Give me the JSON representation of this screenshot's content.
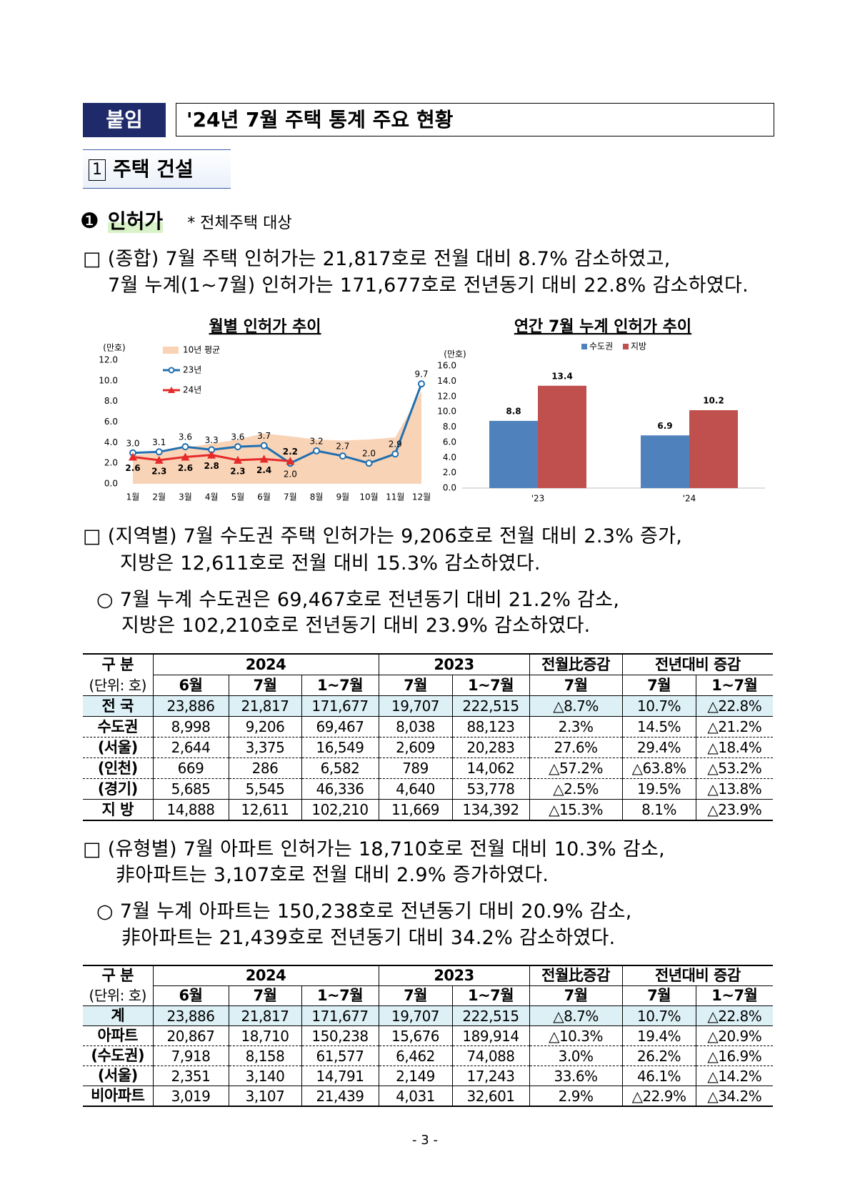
{
  "header": {
    "tag": "붙임",
    "title": "'24년 7월 주택 통계 주요 현황"
  },
  "section": {
    "number": "1",
    "title": "주택 건설"
  },
  "subsection": {
    "bullet": "❶",
    "title": "인허가",
    "note": "* 전체주택 대상"
  },
  "paragraphs": [
    {
      "lines": [
        "□ (종합) 7월 주택 인허가는 21,817호로 전월 대비 8.7% 감소하였고,",
        "7월 누계(1~7월) 인허가는 171,677호로 전년동기 대비 22.8% 감소하였다."
      ]
    },
    {
      "lines": [
        "□ (지역별) 7월 수도권 주택 인허가는 9,206호로 전월 대비 2.3% 증가,",
        "지방은 12,611호로 전월 대비 15.3% 감소하였다."
      ]
    },
    {
      "lines": [
        "○ 7월 누계 수도권은 69,467호로 전년동기 대비 21.2% 감소,",
        "지방은 102,210호로 전년동기 대비 23.9% 감소하였다."
      ]
    },
    {
      "lines": [
        "□ (유형별) 7월 아파트 인허가는 18,710호로 전월 대비 10.3% 감소,",
        "非아파트는 3,107호로 전월 대비 2.9% 증가하였다."
      ]
    },
    {
      "lines": [
        "○ 7월 누계 아파트는 150,238호로 전년동기 대비 20.9% 감소,",
        "非아파트는 21,439호로 전년동기 대비 34.2% 감소하였다."
      ]
    }
  ],
  "chart_data": [
    {
      "type": "line",
      "title": "월별 인허가 추이",
      "y_label": "(만호)",
      "legend": "upper left",
      "categories": [
        "1월",
        "2월",
        "3월",
        "4월",
        "5월",
        "6월",
        "7월",
        "8월",
        "9월",
        "10월",
        "11월",
        "12월"
      ],
      "ylim": [
        0,
        12
      ],
      "yticks": [
        {
          "value": 0,
          "label": "0.0"
        },
        {
          "value": 2,
          "label": "2.0"
        },
        {
          "value": 4,
          "label": "4.0"
        },
        {
          "value": 6,
          "label": "6.0"
        },
        {
          "value": 8,
          "label": "8.0"
        },
        {
          "value": 10,
          "label": "10.0"
        },
        {
          "value": 12,
          "label": "12.0"
        }
      ],
      "series": [
        {
          "name": "10년 평균",
          "type": "area",
          "color": "#f9d3b6",
          "values": [
            2.8,
            3.0,
            3.5,
            3.9,
            4.3,
            4.9,
            4.6,
            4.3,
            4.2,
            4.3,
            4.5,
            9.0
          ]
        },
        {
          "name": "23년",
          "color": "#1f6fb0",
          "values": [
            3,
            3.1,
            3.6,
            3.3,
            3.6,
            3.7,
            2,
            3.2,
            2.7,
            2,
            2.9,
            9.7
          ],
          "value_labels": [
            "3.0",
            "3.1",
            "3.6",
            "3.3",
            "3.6",
            "3.7",
            "2.0",
            "3.2",
            "2.7",
            "2.0",
            "2.9",
            "9.7"
          ]
        },
        {
          "name": "24년",
          "color": "#e52a2a",
          "values": [
            2.6,
            2.3,
            2.6,
            2.8,
            2.3,
            2.4,
            2.2,
            null,
            null,
            null,
            null,
            null
          ],
          "value_labels": [
            "2.6",
            "2.3",
            "2.6",
            "2.8",
            "2.3",
            "2.4",
            "2.2",
            null,
            null,
            null,
            null,
            null
          ]
        }
      ]
    },
    {
      "type": "bar",
      "title": "연간 7월 누계 인허가 추이",
      "y_label": "(만호)",
      "legend": "top",
      "categories": [
        "'23",
        "'24"
      ],
      "ylim": [
        0,
        16
      ],
      "yticks": [
        {
          "value": 0,
          "label": "0.0"
        },
        {
          "value": 2,
          "label": "2.0"
        },
        {
          "value": 4,
          "label": "4.0"
        },
        {
          "value": 6,
          "label": "6.0"
        },
        {
          "value": 8,
          "label": "8.0"
        },
        {
          "value": 10,
          "label": "10.0"
        },
        {
          "value": 12,
          "label": "12.0"
        },
        {
          "value": 14,
          "label": "14.0"
        },
        {
          "value": 16,
          "label": "16.0"
        }
      ],
      "series": [
        {
          "name": "수도권",
          "color": "#4f81bd",
          "values": [
            8.8,
            6.9
          ]
        },
        {
          "name": "지방",
          "color": "#c0504d",
          "values": [
            13.4,
            10.2
          ]
        }
      ]
    }
  ],
  "tables": [
    {
      "header": [
        [
          "구 분",
          "2024",
          "2023",
          "전월比증감",
          "전년대비 증감"
        ],
        [
          "(단위: 호)",
          "6월",
          "7월",
          "1~7월",
          "7월",
          "1~7월",
          "7월",
          "7월",
          "1~7월"
        ]
      ],
      "rows": [
        [
          "전 국",
          "23,886",
          "21,817",
          "171,677",
          "19,707",
          "222,515",
          "△8.7%",
          "10.7%",
          "△22.8%"
        ],
        [
          "수도권",
          "8,998",
          "9,206",
          "69,467",
          "8,038",
          "88,123",
          "2.3%",
          "14.5%",
          "△21.2%"
        ],
        [
          "(서울)",
          "2,644",
          "3,375",
          "16,549",
          "2,609",
          "20,283",
          "27.6%",
          "29.4%",
          "△18.4%"
        ],
        [
          "(인천)",
          "669",
          "286",
          "6,582",
          "789",
          "14,062",
          "△57.2%",
          "△63.8%",
          "△53.2%"
        ],
        [
          "(경기)",
          "5,685",
          "5,545",
          "46,336",
          "4,640",
          "53,778",
          "△2.5%",
          "19.5%",
          "△13.8%"
        ],
        [
          "지 방",
          "14,888",
          "12,611",
          "102,210",
          "11,669",
          "134,392",
          "△15.3%",
          "8.1%",
          "△23.9%"
        ]
      ]
    },
    {
      "header": [
        [
          "구 분",
          "2024",
          "2023",
          "전월比증감",
          "전년대비 증감"
        ],
        [
          "(단위: 호)",
          "6월",
          "7월",
          "1~7월",
          "7월",
          "1~7월",
          "7월",
          "7월",
          "1~7월"
        ]
      ],
      "rows": [
        [
          "계",
          "23,886",
          "21,817",
          "171,677",
          "19,707",
          "222,515",
          "△8.7%",
          "10.7%",
          "△22.8%"
        ],
        [
          "아파트",
          "20,867",
          "18,710",
          "150,238",
          "15,676",
          "189,914",
          "△10.3%",
          "19.4%",
          "△20.9%"
        ],
        [
          "(수도권)",
          "7,918",
          "8,158",
          "61,577",
          "6,462",
          "74,088",
          "3.0%",
          "26.2%",
          "△16.9%"
        ],
        [
          "(서울)",
          "2,351",
          "3,140",
          "14,791",
          "2,149",
          "17,243",
          "33.6%",
          "46.1%",
          "△14.2%"
        ],
        [
          "비아파트",
          "3,019",
          "3,107",
          "21,439",
          "4,031",
          "32,601",
          "2.9%",
          "△22.9%",
          "△34.2%"
        ]
      ]
    }
  ],
  "footer": "- 3 -"
}
